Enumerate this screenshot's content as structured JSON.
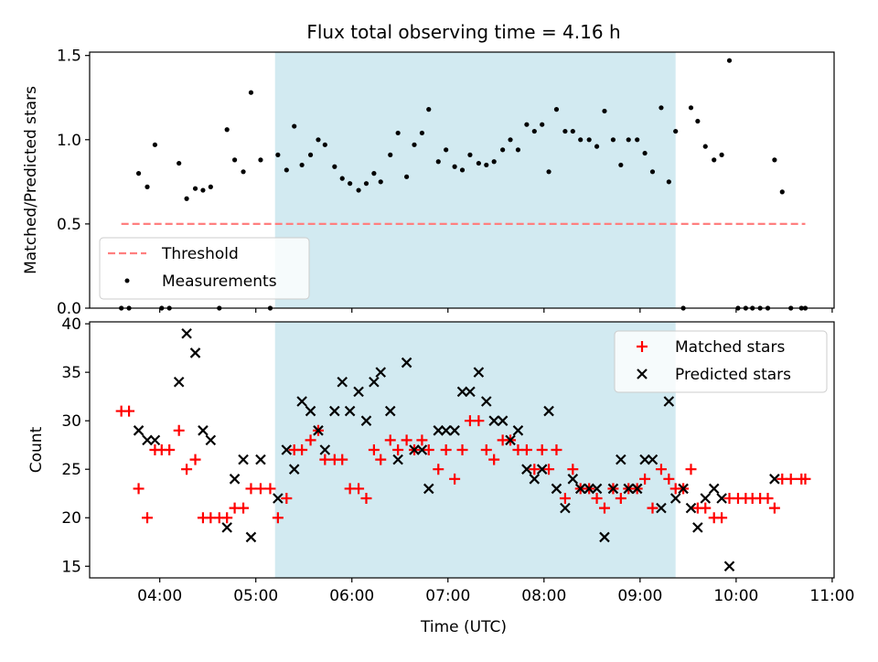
{
  "title": "Flux total observing time = 4.16 h",
  "xlabel": "Time (UTC)",
  "x_tick_labels": [
    "04:00",
    "05:00",
    "06:00",
    "07:00",
    "08:00",
    "09:00",
    "10:00",
    "11:00"
  ],
  "colors": {
    "shade": "#add8e6",
    "threshold": "#ff7f7f",
    "measurements": "#000000",
    "matched": "#ff0000",
    "predicted": "#000000"
  },
  "chart_data": [
    {
      "type": "scatter",
      "ylabel": "Matched/Predicted stars",
      "x_units": "hours UTC",
      "xlim": [
        3.27,
        11.02
      ],
      "ylim": [
        0,
        1.52
      ],
      "y_ticks": [
        0.0,
        0.5,
        1.0,
        1.5
      ],
      "shaded_interval": [
        5.2,
        9.37
      ],
      "legend_position": "lower-left",
      "threshold": {
        "name": "Threshold",
        "value": 0.5,
        "x_range": [
          3.6,
          10.72
        ]
      },
      "series": [
        {
          "name": "Measurements",
          "points": [
            [
              3.6,
              0.0
            ],
            [
              3.68,
              0.0
            ],
            [
              3.78,
              0.8
            ],
            [
              3.87,
              0.72
            ],
            [
              3.95,
              0.97
            ],
            [
              4.02,
              0.0
            ],
            [
              4.1,
              0.0
            ],
            [
              4.2,
              0.86
            ],
            [
              4.28,
              0.65
            ],
            [
              4.37,
              0.71
            ],
            [
              4.45,
              0.7
            ],
            [
              4.53,
              0.72
            ],
            [
              4.62,
              0.0
            ],
            [
              4.7,
              1.06
            ],
            [
              4.78,
              0.88
            ],
            [
              4.87,
              0.81
            ],
            [
              4.95,
              1.28
            ],
            [
              5.05,
              0.88
            ],
            [
              5.15,
              0.0
            ],
            [
              5.23,
              0.91
            ],
            [
              5.32,
              0.82
            ],
            [
              5.4,
              1.08
            ],
            [
              5.48,
              0.85
            ],
            [
              5.57,
              0.91
            ],
            [
              5.65,
              1.0
            ],
            [
              5.72,
              0.97
            ],
            [
              5.82,
              0.84
            ],
            [
              5.9,
              0.77
            ],
            [
              5.98,
              0.74
            ],
            [
              6.07,
              0.7
            ],
            [
              6.15,
              0.74
            ],
            [
              6.23,
              0.8
            ],
            [
              6.3,
              0.75
            ],
            [
              6.4,
              0.91
            ],
            [
              6.48,
              1.04
            ],
            [
              6.57,
              0.78
            ],
            [
              6.65,
              0.97
            ],
            [
              6.73,
              1.04
            ],
            [
              6.8,
              1.18
            ],
            [
              6.9,
              0.87
            ],
            [
              6.98,
              0.94
            ],
            [
              7.07,
              0.84
            ],
            [
              7.15,
              0.82
            ],
            [
              7.23,
              0.91
            ],
            [
              7.32,
              0.86
            ],
            [
              7.4,
              0.85
            ],
            [
              7.48,
              0.87
            ],
            [
              7.57,
              0.94
            ],
            [
              7.65,
              1.0
            ],
            [
              7.73,
              0.94
            ],
            [
              7.82,
              1.09
            ],
            [
              7.9,
              1.05
            ],
            [
              7.98,
              1.09
            ],
            [
              8.05,
              0.81
            ],
            [
              8.13,
              1.18
            ],
            [
              8.22,
              1.05
            ],
            [
              8.3,
              1.05
            ],
            [
              8.38,
              1.0
            ],
            [
              8.47,
              1.0
            ],
            [
              8.55,
              0.96
            ],
            [
              8.63,
              1.17
            ],
            [
              8.72,
              1.0
            ],
            [
              8.8,
              0.85
            ],
            [
              8.88,
              1.0
            ],
            [
              8.97,
              1.0
            ],
            [
              9.05,
              0.92
            ],
            [
              9.13,
              0.81
            ],
            [
              9.22,
              1.19
            ],
            [
              9.3,
              0.75
            ],
            [
              9.37,
              1.05
            ],
            [
              9.45,
              0.0
            ],
            [
              9.53,
              1.19
            ],
            [
              9.6,
              1.11
            ],
            [
              9.68,
              0.96
            ],
            [
              9.77,
              0.88
            ],
            [
              9.85,
              0.91
            ],
            [
              9.93,
              1.47
            ],
            [
              10.02,
              0.0
            ],
            [
              10.1,
              0.0
            ],
            [
              10.17,
              0.0
            ],
            [
              10.25,
              0.0
            ],
            [
              10.33,
              0.0
            ],
            [
              10.4,
              0.88
            ],
            [
              10.48,
              0.69
            ],
            [
              10.57,
              0.0
            ],
            [
              10.68,
              0.0
            ],
            [
              10.72,
              0.0
            ]
          ]
        }
      ]
    },
    {
      "type": "scatter",
      "ylabel": "Count",
      "x_units": "hours UTC",
      "xlim": [
        3.27,
        11.02
      ],
      "ylim": [
        13.8,
        40.2
      ],
      "y_ticks": [
        15,
        20,
        25,
        30,
        35,
        40
      ],
      "shaded_interval": [
        5.2,
        9.37
      ],
      "legend_position": "top-right",
      "series": [
        {
          "name": "Matched stars",
          "marker": "plus",
          "points": [
            [
              3.6,
              31
            ],
            [
              3.68,
              31
            ],
            [
              3.78,
              23
            ],
            [
              3.87,
              20
            ],
            [
              3.95,
              27
            ],
            [
              4.02,
              27
            ],
            [
              4.1,
              27
            ],
            [
              4.2,
              29
            ],
            [
              4.28,
              25
            ],
            [
              4.37,
              26
            ],
            [
              4.45,
              20
            ],
            [
              4.53,
              20
            ],
            [
              4.62,
              20
            ],
            [
              4.7,
              20
            ],
            [
              4.78,
              21
            ],
            [
              4.87,
              21
            ],
            [
              4.95,
              23
            ],
            [
              5.05,
              23
            ],
            [
              5.15,
              23
            ],
            [
              5.23,
              20
            ],
            [
              5.32,
              22
            ],
            [
              5.4,
              27
            ],
            [
              5.48,
              27
            ],
            [
              5.57,
              28
            ],
            [
              5.65,
              29
            ],
            [
              5.72,
              26
            ],
            [
              5.82,
              26
            ],
            [
              5.9,
              26
            ],
            [
              5.98,
              23
            ],
            [
              6.07,
              23
            ],
            [
              6.15,
              22
            ],
            [
              6.23,
              27
            ],
            [
              6.3,
              26
            ],
            [
              6.4,
              28
            ],
            [
              6.48,
              27
            ],
            [
              6.57,
              28
            ],
            [
              6.65,
              27
            ],
            [
              6.73,
              28
            ],
            [
              6.8,
              27
            ],
            [
              6.9,
              25
            ],
            [
              6.98,
              27
            ],
            [
              7.07,
              24
            ],
            [
              7.15,
              27
            ],
            [
              7.23,
              30
            ],
            [
              7.32,
              30
            ],
            [
              7.4,
              27
            ],
            [
              7.48,
              26
            ],
            [
              7.57,
              28
            ],
            [
              7.65,
              28
            ],
            [
              7.73,
              27
            ],
            [
              7.82,
              27
            ],
            [
              7.9,
              25
            ],
            [
              7.98,
              27
            ],
            [
              8.05,
              25
            ],
            [
              8.13,
              27
            ],
            [
              8.22,
              22
            ],
            [
              8.3,
              25
            ],
            [
              8.38,
              23
            ],
            [
              8.47,
              23
            ],
            [
              8.55,
              22
            ],
            [
              8.63,
              21
            ],
            [
              8.72,
              23
            ],
            [
              8.8,
              22
            ],
            [
              8.88,
              23
            ],
            [
              8.97,
              23
            ],
            [
              9.05,
              24
            ],
            [
              9.13,
              21
            ],
            [
              9.22,
              25
            ],
            [
              9.3,
              24
            ],
            [
              9.37,
              23
            ],
            [
              9.45,
              23
            ],
            [
              9.53,
              25
            ],
            [
              9.6,
              21
            ],
            [
              9.68,
              21
            ],
            [
              9.77,
              20
            ],
            [
              9.85,
              20
            ],
            [
              9.93,
              22
            ],
            [
              10.02,
              22
            ],
            [
              10.1,
              22
            ],
            [
              10.17,
              22
            ],
            [
              10.25,
              22
            ],
            [
              10.33,
              22
            ],
            [
              10.4,
              21
            ],
            [
              10.48,
              24
            ],
            [
              10.57,
              24
            ],
            [
              10.68,
              24
            ],
            [
              10.72,
              24
            ]
          ]
        },
        {
          "name": "Predicted stars",
          "marker": "x",
          "points": [
            [
              3.78,
              29
            ],
            [
              3.87,
              28
            ],
            [
              3.95,
              28
            ],
            [
              4.2,
              34
            ],
            [
              4.28,
              39
            ],
            [
              4.37,
              37
            ],
            [
              4.45,
              29
            ],
            [
              4.53,
              28
            ],
            [
              4.7,
              19
            ],
            [
              4.78,
              24
            ],
            [
              4.87,
              26
            ],
            [
              4.95,
              18
            ],
            [
              5.05,
              26
            ],
            [
              5.23,
              22
            ],
            [
              5.32,
              27
            ],
            [
              5.4,
              25
            ],
            [
              5.48,
              32
            ],
            [
              5.57,
              31
            ],
            [
              5.65,
              29
            ],
            [
              5.72,
              27
            ],
            [
              5.82,
              31
            ],
            [
              5.9,
              34
            ],
            [
              5.98,
              31
            ],
            [
              6.07,
              33
            ],
            [
              6.15,
              30
            ],
            [
              6.23,
              34
            ],
            [
              6.3,
              35
            ],
            [
              6.4,
              31
            ],
            [
              6.48,
              26
            ],
            [
              6.57,
              36
            ],
            [
              6.65,
              27
            ],
            [
              6.73,
              27
            ],
            [
              6.8,
              23
            ],
            [
              6.9,
              29
            ],
            [
              6.98,
              29
            ],
            [
              7.07,
              29
            ],
            [
              7.15,
              33
            ],
            [
              7.23,
              33
            ],
            [
              7.32,
              35
            ],
            [
              7.4,
              32
            ],
            [
              7.48,
              30
            ],
            [
              7.57,
              30
            ],
            [
              7.65,
              28
            ],
            [
              7.73,
              29
            ],
            [
              7.82,
              25
            ],
            [
              7.9,
              24
            ],
            [
              7.98,
              25
            ],
            [
              8.05,
              31
            ],
            [
              8.13,
              23
            ],
            [
              8.22,
              21
            ],
            [
              8.3,
              24
            ],
            [
              8.38,
              23
            ],
            [
              8.47,
              23
            ],
            [
              8.55,
              23
            ],
            [
              8.63,
              18
            ],
            [
              8.72,
              23
            ],
            [
              8.8,
              26
            ],
            [
              8.88,
              23
            ],
            [
              8.97,
              23
            ],
            [
              9.05,
              26
            ],
            [
              9.13,
              26
            ],
            [
              9.22,
              21
            ],
            [
              9.3,
              32
            ],
            [
              9.37,
              22
            ],
            [
              9.45,
              23
            ],
            [
              9.53,
              21
            ],
            [
              9.6,
              19
            ],
            [
              9.68,
              22
            ],
            [
              9.77,
              23
            ],
            [
              9.85,
              22
            ],
            [
              9.93,
              15
            ],
            [
              10.4,
              24
            ]
          ]
        }
      ]
    }
  ]
}
